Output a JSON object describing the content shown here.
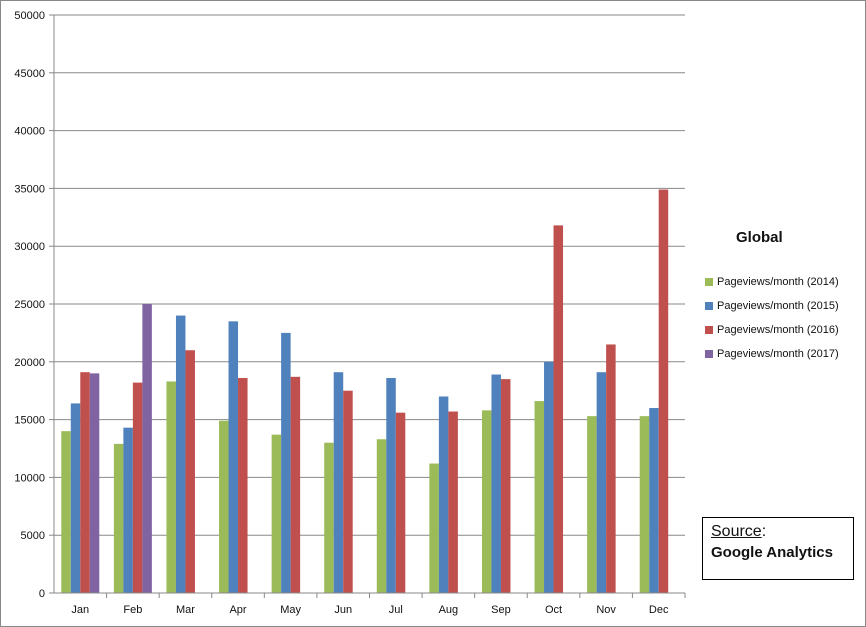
{
  "chart_data": {
    "type": "bar",
    "title": "",
    "xlabel": "",
    "ylabel": "",
    "categories": [
      "Jan",
      "Feb",
      "Mar",
      "Apr",
      "May",
      "Jun",
      "Jul",
      "Aug",
      "Sep",
      "Oct",
      "Nov",
      "Dec"
    ],
    "ylim": [
      0,
      50000
    ],
    "yticks": [
      0,
      5000,
      10000,
      15000,
      20000,
      25000,
      30000,
      35000,
      40000,
      45000,
      50000
    ],
    "grid": true,
    "legend_title": "Global",
    "legend_position": "right",
    "series": [
      {
        "name": "Pageviews/month (2014)",
        "color": "#9bbb59",
        "values": [
          14000,
          12900,
          18300,
          14900,
          13700,
          13000,
          13300,
          11200,
          15800,
          16600,
          15300,
          15300
        ]
      },
      {
        "name": "Pageviews/month (2015)",
        "color": "#4f81bd",
        "values": [
          16400,
          14300,
          24000,
          23500,
          22500,
          19100,
          18600,
          17000,
          18900,
          20000,
          19100,
          16000
        ]
      },
      {
        "name": "Pageviews/month (2016)",
        "color": "#c0504d",
        "values": [
          19100,
          18200,
          21000,
          18600,
          18700,
          17500,
          15600,
          15700,
          18500,
          31800,
          21500,
          34900
        ]
      },
      {
        "name": "Pageviews/month (2017)",
        "color": "#8064a2",
        "values": [
          19000,
          25000,
          null,
          null,
          null,
          null,
          null,
          null,
          null,
          null,
          null,
          null
        ]
      }
    ]
  },
  "source": {
    "label": "Source",
    "colon": ":",
    "value": "Google Analytics"
  }
}
